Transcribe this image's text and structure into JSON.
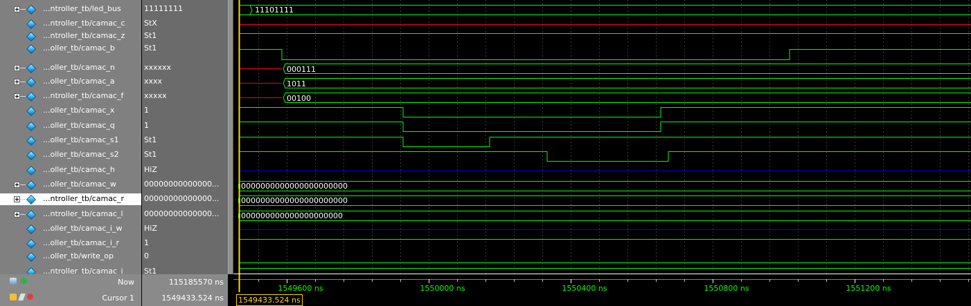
{
  "signals": [
    {
      "name": "...ntroller_tb/led_bus",
      "value": "11111111",
      "expandable": true
    },
    {
      "name": "...ntroller_tb/camac_c",
      "value": "StX",
      "expandable": false
    },
    {
      "name": "...ntroller_tb/camac_z",
      "value": "St1",
      "expandable": false
    },
    {
      "name": "...oller_tb/camac_b",
      "value": "St1",
      "expandable": false
    },
    {
      "name": "...oller_tb/camac_n",
      "value": "xxxxxx",
      "expandable": true
    },
    {
      "name": "...oller_tb/camac_a",
      "value": "xxxx",
      "expandable": true
    },
    {
      "name": "...ntroller_tb/camac_f",
      "value": "xxxxx",
      "expandable": true
    },
    {
      "name": "...oller_tb/camac_x",
      "value": "1",
      "expandable": false
    },
    {
      "name": "...oller_tb/camac_q",
      "value": "1",
      "expandable": false
    },
    {
      "name": "...oller_tb/camac_s1",
      "value": "St1",
      "expandable": false
    },
    {
      "name": "...oller_tb/camac_s2",
      "value": "St1",
      "expandable": false
    },
    {
      "name": "...oller_tb/camac_h",
      "value": "HiZ",
      "expandable": false
    },
    {
      "name": "...oller_tb/camac_w",
      "value": "00000000000000...",
      "expandable": true
    },
    {
      "name": "...ntroller_tb/camac_r",
      "value": "00000000000000...",
      "expandable": true,
      "selected": true
    },
    {
      "name": "...ntroller_tb/camac_l",
      "value": "00000000000000...",
      "expandable": true
    },
    {
      "name": "...oller_tb/camac_i_w",
      "value": "HiZ",
      "expandable": false
    },
    {
      "name": "...oller_tb/camac_i_r",
      "value": "1",
      "expandable": false
    },
    {
      "name": "...oller_tb/write_op",
      "value": "0",
      "expandable": false
    },
    {
      "name": "...ntroller_tb/camac_i",
      "value": "St1",
      "expandable": false
    }
  ],
  "bus_values": {
    "led_bus": "11101111",
    "camac_n": "000111",
    "camac_a": "1011",
    "camac_f": "00100",
    "camac_w": "0000000000000000000000",
    "camac_r": "0000000000000000000000",
    "camac_l": "000000000000000000000"
  },
  "footer": {
    "now_label": "Now",
    "now_value": "115185570 ns",
    "cursor_label": "Cursor 1",
    "cursor_value": "1549433.524 ns",
    "cursor_marker": "1549433.524 ns"
  },
  "timeline": {
    "ticks": [
      "1549600 ns",
      "1550000 ns",
      "1550400 ns",
      "1550800 ns",
      "1551200 ns"
    ]
  },
  "colors": {
    "wave_green": "#00ff00",
    "x_red": "#ff0000",
    "hiz_blue": "#0000ff",
    "cursor_yellow": "#ffd700"
  }
}
